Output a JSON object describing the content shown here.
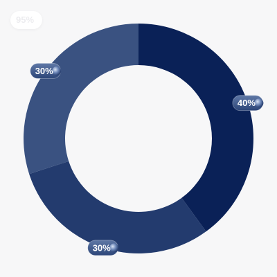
{
  "corner_badge": {
    "text": "95%"
  },
  "chart_data": {
    "type": "pie",
    "categories": [
      "",
      "",
      ""
    ],
    "values": [
      40,
      30,
      30
    ],
    "labels": [
      "40%",
      "30%",
      "30%"
    ],
    "colors": [
      "#0a2157",
      "#233b6e",
      "#3a5281"
    ],
    "label_colors": [
      "#ffffff",
      "#ffffff",
      "#ffffff"
    ],
    "title": "",
    "legend": "none"
  }
}
